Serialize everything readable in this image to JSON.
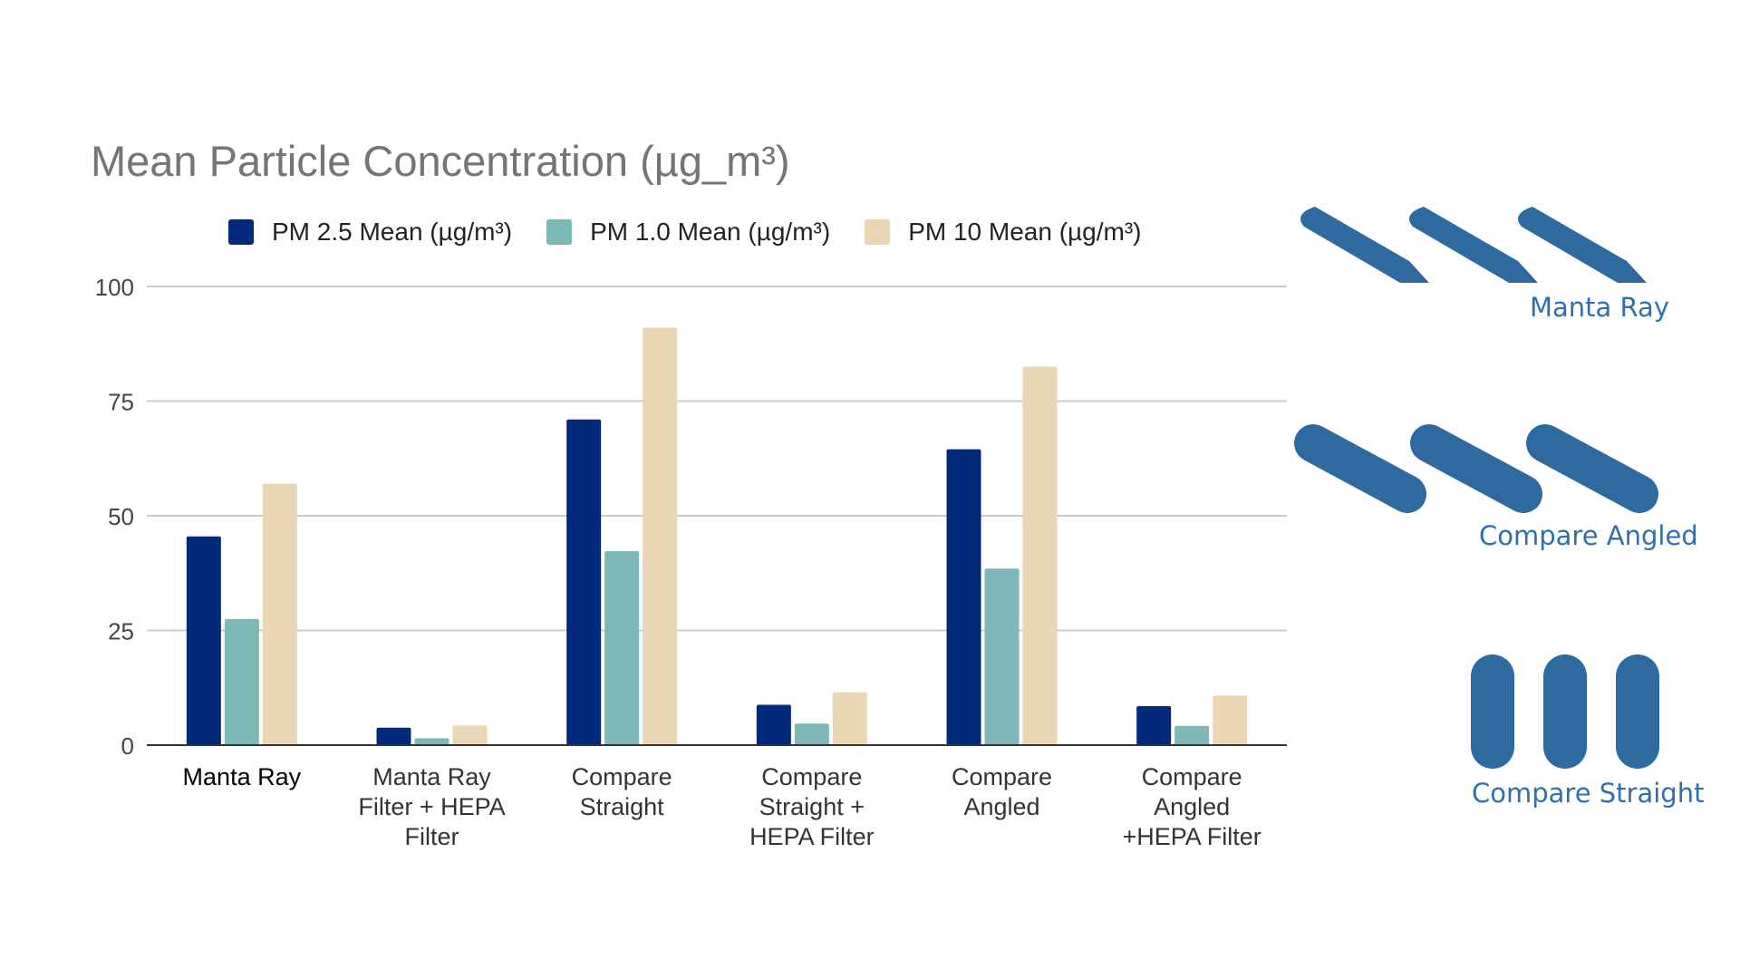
{
  "chart_data": {
    "type": "bar",
    "title": "Mean Particle Concentration (µg_m³)",
    "categories": [
      "Manta Ray",
      "Manta Ray Filter + HEPA Filter",
      "Compare Straight",
      "Compare Straight + HEPA Filter",
      "Compare Angled",
      "Compare Angled +HEPA Filter"
    ],
    "category_lines": [
      [
        "Manta Ray"
      ],
      [
        "Manta Ray",
        "Filter + HEPA",
        "Filter"
      ],
      [
        "Compare",
        "Straight"
      ],
      [
        "Compare",
        "Straight +",
        "HEPA Filter"
      ],
      [
        "Compare",
        "Angled"
      ],
      [
        "Compare",
        "Angled",
        "+HEPA  Filter"
      ]
    ],
    "series": [
      {
        "name": "PM 2.5 Mean  (µg/m³)",
        "color": "#022a7a",
        "values": [
          45.5,
          3.8,
          71,
          8.8,
          64.5,
          8.5
        ]
      },
      {
        "name": "PM 1.0 Mean (µg/m³)",
        "color": "#7eb7b7",
        "values": [
          27.5,
          1.5,
          42.3,
          4.7,
          38.5,
          4.2
        ]
      },
      {
        "name": "PM 10 Mean (µg/m³)",
        "color": "#e8d6b4",
        "values": [
          57,
          4.3,
          91,
          11.5,
          82.5,
          10.8
        ]
      }
    ],
    "yticks": [
      0,
      25,
      50,
      75,
      100
    ],
    "ylim": [
      0,
      100
    ],
    "xlabel": "",
    "ylabel": "",
    "grid": true,
    "legend": "top"
  },
  "diagrams": [
    {
      "label": "Manta Ray",
      "shape": "pointed-angled-fins"
    },
    {
      "label": "Compare Angled",
      "shape": "rounded-angled-fins"
    },
    {
      "label": "Compare Straight",
      "shape": "vertical-rounded-fins"
    }
  ],
  "diagram_color": "#2e69a0"
}
